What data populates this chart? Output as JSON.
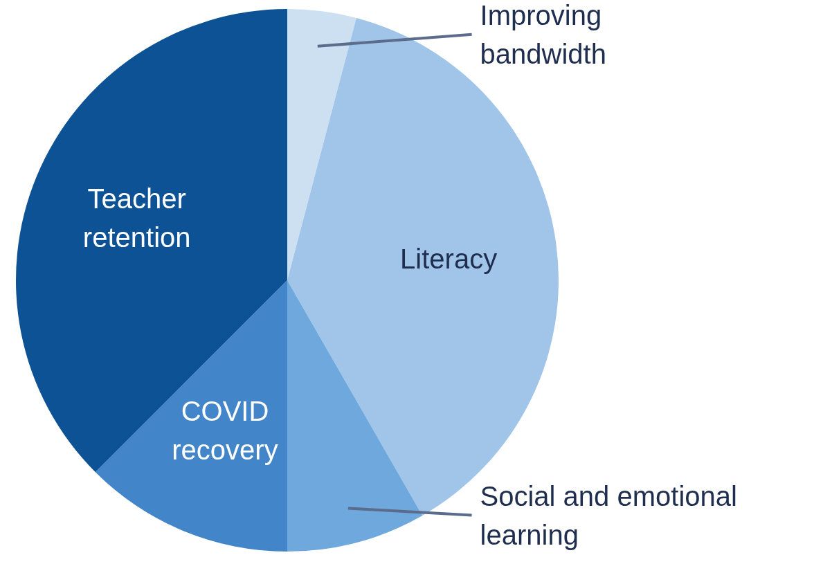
{
  "chart_data": {
    "type": "pie",
    "categories": [
      "Improving bandwidth",
      "Literacy",
      "Social and emotional learning",
      "COVID recovery",
      "Teacher retention"
    ],
    "values": [
      4.1,
      37.6,
      8.3,
      12.5,
      37.5
    ],
    "colors": [
      "#cde0f2",
      "#a0c5e8",
      "#6fa8dc",
      "#4285c8",
      "#0d5295"
    ],
    "legend": false
  }
}
